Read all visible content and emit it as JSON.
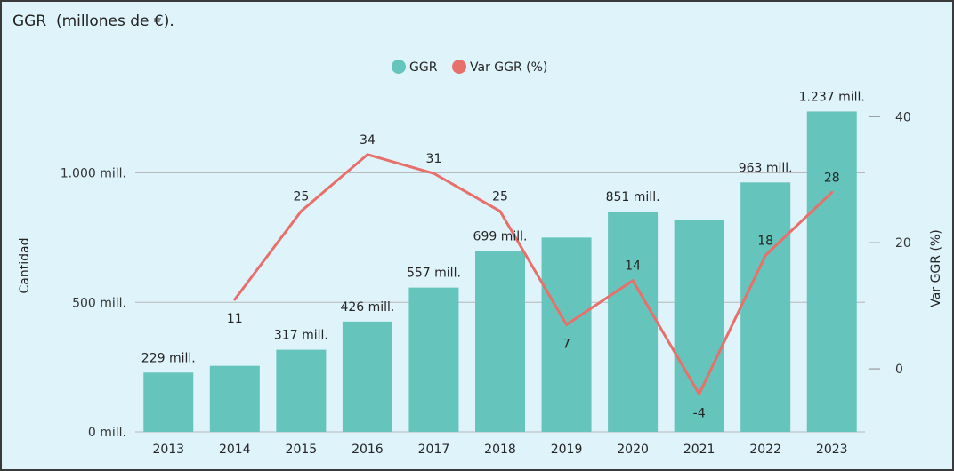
{
  "chart_data": {
    "type": "bar",
    "title": "GGR  (millones de €).",
    "categories": [
      "2013",
      "2014",
      "2015",
      "2016",
      "2017",
      "2018",
      "2019",
      "2020",
      "2021",
      "2022",
      "2023"
    ],
    "legend_position": "top-center",
    "grid": true,
    "y_axis": {
      "label": "Cantidad",
      "range": [
        0,
        1290
      ],
      "ticks": [
        0,
        500,
        1000
      ],
      "tick_labels": [
        "0 mill.",
        "500 mill.",
        "1.000 mill."
      ]
    },
    "y2_axis": {
      "label": "Var GGR (%)",
      "range": [
        -10,
        43
      ],
      "ticks": [
        0,
        20,
        40
      ],
      "tick_labels": [
        "0",
        "20",
        "40"
      ]
    },
    "series": [
      {
        "name": "GGR",
        "kind": "bar",
        "axis": "left",
        "color": "#65c4bb",
        "values": [
          229,
          255,
          317,
          426,
          557,
          699,
          750,
          851,
          820,
          963,
          1237
        ],
        "data_labels": [
          "229 mill.",
          "",
          "317 mill.",
          "426 mill.",
          "557 mill.",
          "699 mill.",
          "",
          "851 mill.",
          "",
          "963 mill.",
          "1.237 mill."
        ]
      },
      {
        "name": "Var GGR (%)",
        "kind": "line",
        "axis": "right",
        "color": "#e8706b",
        "values": [
          null,
          11,
          25,
          34,
          31,
          25,
          7,
          14,
          -4,
          18,
          28
        ],
        "data_labels": [
          "",
          "11",
          "25",
          "34",
          "31",
          "25",
          "7",
          "14",
          "-4",
          "18",
          "28"
        ]
      }
    ]
  }
}
